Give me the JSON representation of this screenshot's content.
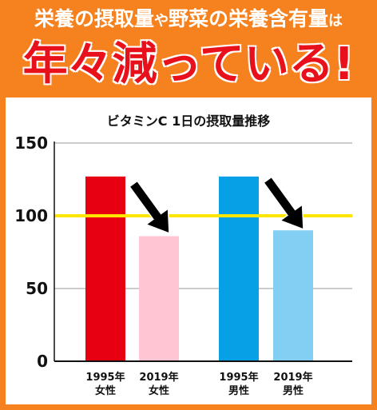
{
  "headline": {
    "line1_parts": [
      {
        "text": "栄養の摂取量",
        "small": false
      },
      {
        "text": "や",
        "small": true
      },
      {
        "text": "野菜の栄養含有量",
        "small": false
      },
      {
        "text": "は",
        "small": true
      }
    ],
    "line2": "年々減っている!"
  },
  "colors": {
    "frame": "#f5821f",
    "title_bar_text": "#ffffff",
    "headline_red": "#e8101a",
    "reference_line": "#ffe600",
    "arrow": "#000000"
  },
  "chart_data": {
    "type": "bar",
    "title": "ビタミンC 1日の摂取量推移",
    "categories": [
      "1995年\n女性",
      "2019年\n女性",
      "1995年\n男性",
      "2019年\n男性"
    ],
    "category_lines": [
      [
        "1995年",
        "女性"
      ],
      [
        "2019年",
        "女性"
      ],
      [
        "1995年",
        "男性"
      ],
      [
        "2019年",
        "男性"
      ]
    ],
    "values": [
      127,
      86,
      127,
      90
    ],
    "bar_colors": [
      "#e60012",
      "#ffc5d3",
      "#07a0e6",
      "#82cff3"
    ],
    "ylim": [
      0,
      150
    ],
    "yticks": [
      0,
      50,
      100,
      150
    ],
    "reference_line": 100,
    "grid": true,
    "annotations": [
      "arrow-down-women",
      "arrow-down-men"
    ]
  }
}
